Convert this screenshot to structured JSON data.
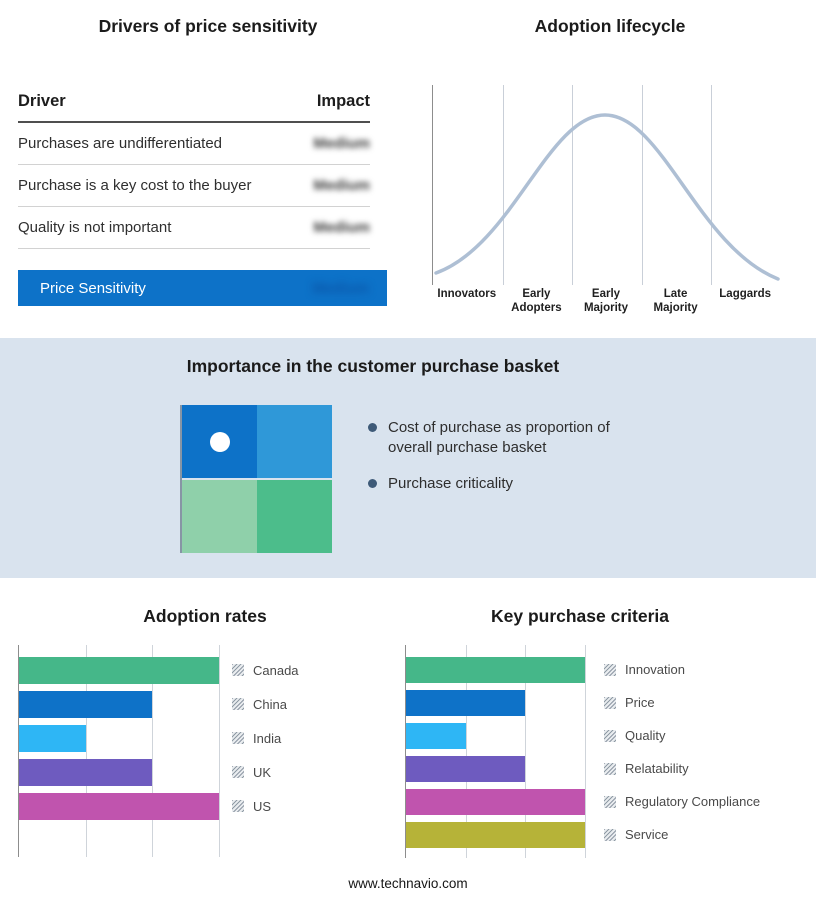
{
  "top": {
    "drivers": {
      "title": "Drivers of price sensitivity",
      "columns": {
        "driver": "Driver",
        "impact": "Impact"
      },
      "rows": [
        {
          "label": "Purchases are undifferentiated",
          "impact": "Medium"
        },
        {
          "label": "Purchase is a key cost to the buyer",
          "impact": "Medium"
        },
        {
          "label": "Quality is not important",
          "impact": "Medium"
        }
      ],
      "highlight": {
        "label": "Price Sensitivity",
        "impact": "Medium",
        "bg": "#0d72c8"
      }
    },
    "lifecycle": {
      "title": "Adoption lifecycle",
      "stages": [
        "Innovators",
        "Early Adopters",
        "Early Majority",
        "Late Majority",
        "Laggards"
      ],
      "curve_color": "#aebfd4"
    }
  },
  "middle": {
    "title": "Importance in the customer purchase basket",
    "bullets": [
      "Cost of purchase as proportion of overall purchase basket",
      "Purchase criticality"
    ],
    "quadrant": {
      "top_left": "#0d72c8",
      "top_right": "#2f98d8",
      "bottom_left": "#8fd0aa",
      "bottom_right": "#4cbd8b"
    }
  },
  "bottom": {
    "adoption_title": "Adoption rates",
    "criteria_title": "Key purchase criteria"
  },
  "footer": "www.technavio.com",
  "chart_data": [
    {
      "type": "line",
      "title": "Adoption lifecycle",
      "shape": "bell_curve",
      "x_categories": [
        "Innovators",
        "Early Adopters",
        "Early Majority",
        "Late Majority",
        "Laggards"
      ],
      "peak_category": "Early Majority",
      "grid": true,
      "curve_color": "#aebfd4"
    },
    {
      "type": "bar",
      "orientation": "horizontal",
      "title": "Adoption rates",
      "categories": [
        "Canada",
        "China",
        "India",
        "UK",
        "US"
      ],
      "values": [
        3,
        2,
        1,
        2,
        3
      ],
      "xlim": [
        0,
        3
      ],
      "grid_divisions": 3,
      "colors": [
        "#45b789",
        "#0e72c8",
        "#2eb6f5",
        "#6e5bbf",
        "#c054ae"
      ],
      "legend_position": "right"
    },
    {
      "type": "bar",
      "orientation": "horizontal",
      "title": "Key purchase criteria",
      "categories": [
        "Innovation",
        "Price",
        "Quality",
        "Relatability",
        "Regulatory Compliance",
        "Service"
      ],
      "values": [
        3,
        2,
        1,
        2,
        3,
        3
      ],
      "xlim": [
        0,
        3
      ],
      "grid_divisions": 3,
      "colors": [
        "#45b789",
        "#0e72c8",
        "#2eb6f5",
        "#6e5bbf",
        "#c054ae",
        "#b6b338"
      ],
      "legend_position": "right"
    }
  ]
}
